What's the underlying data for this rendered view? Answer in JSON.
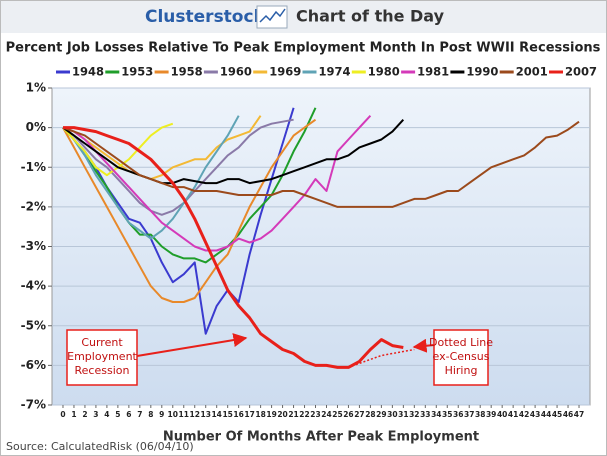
{
  "header": {
    "brand": "Clusterstock",
    "label": "Chart of the Day"
  },
  "chart_data": {
    "type": "line",
    "title": "Percent Job Losses Relative To Peak Employment Month In Post WWII Recessions",
    "x_label": "Number Of Months After Peak Employment",
    "source": "Source: CalculatedRisk (06/04/10)",
    "x": [
      0,
      1,
      2,
      3,
      4,
      5,
      6,
      7,
      8,
      9,
      10,
      11,
      12,
      13,
      14,
      15,
      16,
      17,
      18,
      19,
      20,
      21,
      22,
      23,
      24,
      25,
      26,
      27,
      28,
      29,
      30,
      31,
      32,
      33,
      34,
      35,
      36,
      37,
      38,
      39,
      40,
      41,
      42,
      43,
      44,
      45,
      46,
      47
    ],
    "xlim": [
      -1,
      48
    ],
    "xticks": [
      0,
      1,
      2,
      3,
      4,
      5,
      6,
      7,
      8,
      9,
      10,
      11,
      12,
      13,
      14,
      15,
      16,
      17,
      18,
      19,
      20,
      21,
      22,
      23,
      24,
      25,
      26,
      27,
      28,
      29,
      30,
      31,
      32,
      33,
      34,
      35,
      36,
      37,
      38,
      39,
      40,
      41,
      42,
      43,
      44,
      45,
      46,
      47
    ],
    "ylim": [
      -7,
      1
    ],
    "yticks": [
      {
        "value": 1,
        "label": "1%"
      },
      {
        "value": 0,
        "label": "0%"
      },
      {
        "value": -1,
        "label": "-1%"
      },
      {
        "value": -2,
        "label": "-2%"
      },
      {
        "value": -3,
        "label": "-3%"
      },
      {
        "value": -4,
        "label": "-4%"
      },
      {
        "value": -5,
        "label": "-5%"
      },
      {
        "value": -6,
        "label": "-6%"
      },
      {
        "value": -7,
        "label": "-7%"
      }
    ],
    "grid": true,
    "series": [
      {
        "name": "1948",
        "color": "#3a3acf",
        "values": [
          0,
          -0.3,
          -0.6,
          -1.0,
          -1.5,
          -1.9,
          -2.3,
          -2.4,
          -2.8,
          -3.4,
          -3.9,
          -3.7,
          -3.4,
          -5.2,
          -4.5,
          -4.1,
          -4.4,
          -3.2,
          -2.2,
          -1.3,
          -0.4,
          0.5,
          null,
          null,
          null,
          null,
          null,
          null,
          null,
          null,
          null,
          null,
          null,
          null,
          null,
          null,
          null,
          null,
          null,
          null,
          null,
          null,
          null,
          null,
          null,
          null,
          null,
          null
        ]
      },
      {
        "name": "1953",
        "color": "#1f9e2a",
        "values": [
          0,
          -0.3,
          -0.7,
          -1.1,
          -1.5,
          -2.0,
          -2.4,
          -2.7,
          -2.7,
          -3.0,
          -3.2,
          -3.3,
          -3.3,
          -3.4,
          -3.2,
          -3.0,
          -2.7,
          -2.3,
          -2.0,
          -1.7,
          -1.2,
          -0.6,
          -0.1,
          0.5,
          null,
          null,
          null,
          null,
          null,
          null,
          null,
          null,
          null,
          null,
          null,
          null,
          null,
          null,
          null,
          null,
          null,
          null,
          null,
          null,
          null,
          null,
          null,
          null
        ]
      },
      {
        "name": "1958",
        "color": "#e8892a",
        "values": [
          0,
          -0.5,
          -1.0,
          -1.5,
          -2.0,
          -2.5,
          -3.0,
          -3.5,
          -4.0,
          -4.3,
          -4.4,
          -4.4,
          -4.3,
          -3.9,
          -3.5,
          -3.2,
          -2.6,
          -2.0,
          -1.5,
          -1.0,
          -0.6,
          -0.2,
          0.0,
          0.2,
          null,
          null,
          null,
          null,
          null,
          null,
          null,
          null,
          null,
          null,
          null,
          null,
          null,
          null,
          null,
          null,
          null,
          null,
          null,
          null,
          null,
          null,
          null,
          null
        ]
      },
      {
        "name": "1960",
        "color": "#8a7aa8",
        "values": [
          0,
          -0.2,
          -0.5,
          -0.8,
          -1.0,
          -1.3,
          -1.6,
          -1.9,
          -2.1,
          -2.2,
          -2.1,
          -1.9,
          -1.6,
          -1.3,
          -1.0,
          -0.7,
          -0.5,
          -0.2,
          0.0,
          0.1,
          0.15,
          0.2,
          null,
          null,
          null,
          null,
          null,
          null,
          null,
          null,
          null,
          null,
          null,
          null,
          null,
          null,
          null,
          null,
          null,
          null,
          null,
          null,
          null,
          null,
          null,
          null,
          null,
          null
        ]
      },
      {
        "name": "1969",
        "color": "#f3b935",
        "values": [
          0,
          -0.1,
          -0.3,
          -0.5,
          -0.7,
          -0.9,
          -1.1,
          -1.2,
          -1.3,
          -1.2,
          -1.0,
          -0.9,
          -0.8,
          -0.8,
          -0.5,
          -0.3,
          -0.2,
          -0.1,
          0.3,
          null,
          null,
          null,
          null,
          null,
          null,
          null,
          null,
          null,
          null,
          null,
          null,
          null,
          null,
          null,
          null,
          null,
          null,
          null,
          null,
          null,
          null,
          null,
          null,
          null,
          null,
          null,
          null,
          null
        ]
      },
      {
        "name": "1974",
        "color": "#5fa3b5",
        "values": [
          0,
          -0.3,
          -0.7,
          -1.2,
          -1.6,
          -2.0,
          -2.4,
          -2.6,
          -2.8,
          -2.6,
          -2.3,
          -1.9,
          -1.5,
          -1.0,
          -0.6,
          -0.2,
          0.3,
          null,
          null,
          null,
          null,
          null,
          null,
          null,
          null,
          null,
          null,
          null,
          null,
          null,
          null,
          null,
          null,
          null,
          null,
          null,
          null,
          null,
          null,
          null,
          null,
          null,
          null,
          null,
          null,
          null,
          null,
          null
        ]
      },
      {
        "name": "1980",
        "color": "#eeee22",
        "values": [
          0,
          -0.3,
          -0.6,
          -1.0,
          -1.2,
          -1.0,
          -0.8,
          -0.5,
          -0.2,
          0.0,
          0.1,
          null,
          null,
          null,
          null,
          null,
          null,
          null,
          null,
          null,
          null,
          null,
          null,
          null,
          null,
          null,
          null,
          null,
          null,
          null,
          null,
          null,
          null,
          null,
          null,
          null,
          null,
          null,
          null,
          null,
          null,
          null,
          null,
          null,
          null,
          null,
          null,
          null
        ]
      },
      {
        "name": "1981",
        "color": "#d43ab9",
        "values": [
          0,
          -0.1,
          -0.3,
          -0.6,
          -0.9,
          -1.2,
          -1.5,
          -1.8,
          -2.1,
          -2.4,
          -2.6,
          -2.8,
          -3.0,
          -3.1,
          -3.1,
          -3.0,
          -2.8,
          -2.9,
          -2.8,
          -2.6,
          -2.3,
          -2.0,
          -1.7,
          -1.3,
          -1.6,
          -0.6,
          -0.3,
          0.0,
          0.3,
          null,
          null,
          null,
          null,
          null,
          null,
          null,
          null,
          null,
          null,
          null,
          null,
          null,
          null,
          null,
          null,
          null,
          null,
          null
        ]
      },
      {
        "name": "1990",
        "color": "#000000",
        "values": [
          0,
          -0.2,
          -0.4,
          -0.6,
          -0.8,
          -1.0,
          -1.1,
          -1.2,
          -1.3,
          -1.4,
          -1.4,
          -1.3,
          -1.35,
          -1.4,
          -1.4,
          -1.3,
          -1.3,
          -1.4,
          -1.35,
          -1.3,
          -1.2,
          -1.1,
          -1.0,
          -0.9,
          -0.8,
          -0.8,
          -0.7,
          -0.5,
          -0.4,
          -0.3,
          -0.1,
          0.2,
          null,
          null,
          null,
          null,
          null,
          null,
          null,
          null,
          null,
          null,
          null,
          null,
          null,
          null,
          null,
          null
        ]
      },
      {
        "name": "2001",
        "color": "#9b4a1c",
        "values": [
          0,
          -0.1,
          -0.2,
          -0.4,
          -0.6,
          -0.8,
          -1.0,
          -1.2,
          -1.3,
          -1.4,
          -1.5,
          -1.5,
          -1.6,
          -1.6,
          -1.6,
          -1.65,
          -1.7,
          -1.7,
          -1.7,
          -1.7,
          -1.6,
          -1.6,
          -1.7,
          -1.8,
          -1.9,
          -2.0,
          -2.0,
          -2.0,
          -2.0,
          -2.0,
          -2.0,
          -1.9,
          -1.8,
          -1.8,
          -1.7,
          -1.6,
          -1.6,
          -1.4,
          -1.2,
          -1.0,
          -0.9,
          -0.8,
          -0.7,
          -0.5,
          -0.25,
          -0.2,
          -0.05,
          0.15
        ]
      },
      {
        "name": "2007",
        "color": "#e8201a",
        "width": 3,
        "values": [
          0,
          0,
          -0.05,
          -0.1,
          -0.2,
          -0.3,
          -0.4,
          -0.6,
          -0.8,
          -1.1,
          -1.4,
          -1.8,
          -2.3,
          -2.9,
          -3.5,
          -4.1,
          -4.5,
          -4.8,
          -5.2,
          -5.4,
          -5.6,
          -5.7,
          -5.9,
          -6.0,
          -6.0,
          -6.05,
          -6.05,
          -5.9,
          -5.6,
          -5.35,
          -5.5,
          -5.55,
          null,
          null,
          null,
          null,
          null,
          null,
          null,
          null,
          null,
          null,
          null,
          null,
          null,
          null,
          null,
          null
        ]
      },
      {
        "color": "#e8201a",
        "style": "dotted",
        "values": [
          null,
          null,
          null,
          null,
          null,
          null,
          null,
          null,
          null,
          null,
          null,
          null,
          null,
          null,
          null,
          null,
          null,
          null,
          null,
          null,
          null,
          null,
          null,
          null,
          null,
          null,
          -6.05,
          -5.95,
          -5.85,
          -5.75,
          -5.7,
          -5.65,
          -5.6,
          null,
          null,
          null,
          null,
          null,
          null,
          null,
          null,
          null,
          null,
          null,
          null,
          null,
          null,
          null
        ]
      }
    ],
    "annotations": [
      {
        "lines": [
          "Current",
          "Employment",
          "Recession"
        ]
      },
      {
        "lines": [
          "Dotted Line",
          "ex-Census",
          "Hiring"
        ]
      }
    ]
  }
}
